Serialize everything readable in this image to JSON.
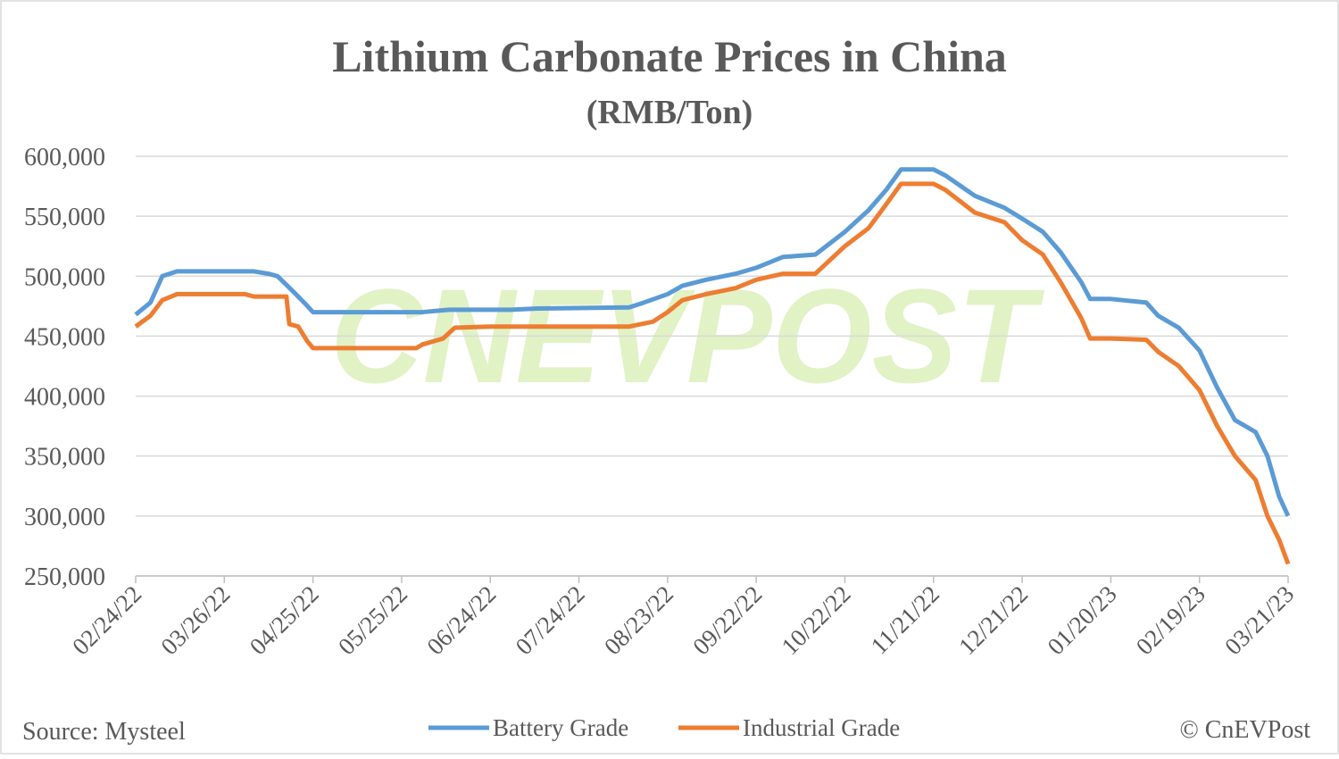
{
  "chart_data": {
    "type": "line",
    "title": "Lithium Carbonate Prices in China",
    "subtitle": "(RMB/Ton)",
    "source": "Source: Mysteel",
    "credit": "© CnEVPost",
    "watermark": "CNEVPOST",
    "grid": true,
    "legend": "bottom",
    "xlim": [
      "02/24/22",
      "03/21/23"
    ],
    "xticks": [
      "02/24/22",
      "03/26/22",
      "04/25/22",
      "05/25/22",
      "06/24/22",
      "07/24/22",
      "08/23/22",
      "09/22/22",
      "10/22/22",
      "11/21/22",
      "12/21/22",
      "01/20/23",
      "02/19/23",
      "03/21/23"
    ],
    "ylim": [
      250000,
      600000
    ],
    "yticks": [
      {
        "value": 250000,
        "label": "250,000"
      },
      {
        "value": 300000,
        "label": "300,000"
      },
      {
        "value": 350000,
        "label": "350,000"
      },
      {
        "value": 400000,
        "label": "400,000"
      },
      {
        "value": 450000,
        "label": "450,000"
      },
      {
        "value": 500000,
        "label": "500,000"
      },
      {
        "value": 550000,
        "label": "550,000"
      },
      {
        "value": 600000,
        "label": "600,000"
      }
    ],
    "series": [
      {
        "name": "Battery Grade",
        "color": "#5b9bd5",
        "x": [
          "02/24/22",
          "03/01/22",
          "03/05/22",
          "03/10/22",
          "04/05/22",
          "04/10/22",
          "04/13/22",
          "04/18/22",
          "04/22/22",
          "04/25/22",
          "06/01/22",
          "06/10/22",
          "07/01/22",
          "07/10/22",
          "08/10/22",
          "08/15/22",
          "08/23/22",
          "08/28/22",
          "09/05/22",
          "09/15/22",
          "09/22/22",
          "10/01/22",
          "10/12/22",
          "10/22/22",
          "10/30/22",
          "11/05/22",
          "11/10/22",
          "11/21/22",
          "11/25/22",
          "12/05/22",
          "12/15/22",
          "12/21/22",
          "12/28/22",
          "01/03/23",
          "01/10/23",
          "01/13/23",
          "01/20/23",
          "02/01/23",
          "02/05/23",
          "02/12/23",
          "02/19/23",
          "02/25/23",
          "03/03/23",
          "03/10/23",
          "03/14/23",
          "03/18/23",
          "03/21/23"
        ],
        "values": [
          468000,
          478000,
          500000,
          504000,
          504000,
          502000,
          500000,
          488000,
          478000,
          470000,
          470000,
          472000,
          472000,
          473000,
          474000,
          478000,
          485000,
          492000,
          497000,
          502000,
          507000,
          516000,
          518000,
          537000,
          555000,
          572000,
          589000,
          589000,
          584000,
          567000,
          557000,
          548000,
          537000,
          520000,
          495000,
          481000,
          481000,
          478000,
          467000,
          457000,
          438000,
          407000,
          380000,
          370000,
          350000,
          316000,
          300000
        ]
      },
      {
        "name": "Industrial Grade",
        "color": "#ed7d31",
        "x": [
          "02/24/22",
          "03/01/22",
          "03/05/22",
          "03/10/22",
          "04/02/22",
          "04/05/22",
          "04/16/22",
          "04/17/22",
          "04/20/22",
          "04/23/22",
          "04/25/22",
          "05/30/22",
          "06/01/22",
          "06/08/22",
          "06/12/22",
          "06/24/22",
          "08/10/22",
          "08/18/22",
          "08/23/22",
          "08/28/22",
          "09/05/22",
          "09/15/22",
          "09/22/22",
          "10/01/22",
          "10/12/22",
          "10/22/22",
          "10/30/22",
          "11/05/22",
          "11/10/22",
          "11/21/22",
          "11/25/22",
          "12/05/22",
          "12/15/22",
          "12/21/22",
          "12/28/22",
          "01/03/23",
          "01/10/23",
          "01/13/23",
          "01/20/23",
          "02/01/23",
          "02/05/23",
          "02/12/23",
          "02/19/23",
          "02/25/23",
          "03/03/23",
          "03/10/23",
          "03/14/23",
          "03/18/23",
          "03/21/23"
        ],
        "values": [
          458000,
          467000,
          480000,
          485000,
          485000,
          483000,
          483000,
          460000,
          458000,
          446000,
          440000,
          440000,
          443000,
          448000,
          457000,
          458000,
          458000,
          462000,
          470000,
          480000,
          485000,
          490000,
          497000,
          502000,
          502000,
          525000,
          540000,
          560000,
          577000,
          577000,
          572000,
          553000,
          545000,
          530000,
          518000,
          495000,
          465000,
          448000,
          448000,
          447000,
          437000,
          425000,
          405000,
          375000,
          350000,
          330000,
          300000,
          280000,
          260000
        ]
      }
    ]
  }
}
